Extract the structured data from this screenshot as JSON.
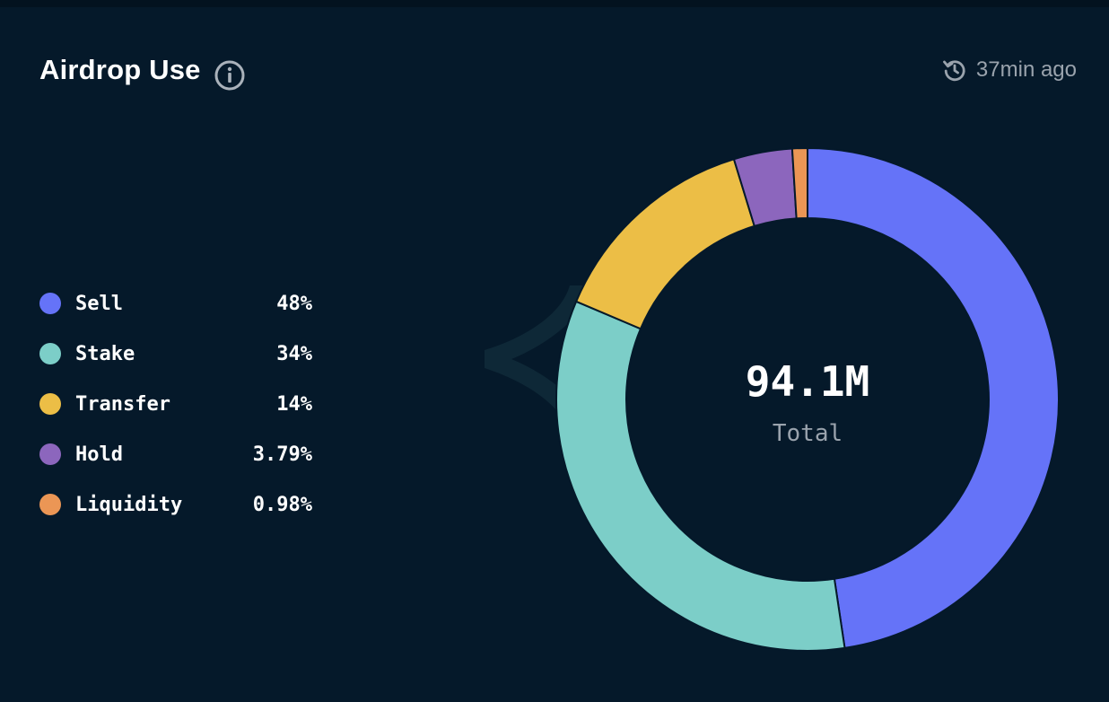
{
  "header": {
    "title": "Airdrop Use",
    "updated": "37min ago"
  },
  "icons": {
    "info": "info-icon",
    "updated": "clock-refresh-icon"
  },
  "center": {
    "value": "94.1M",
    "label": "Total"
  },
  "colors": {
    "background": "#05192a",
    "Sell": "#6573f8",
    "Stake": "#7ccec8",
    "Transfer": "#ecbe46",
    "Hold": "#8c66bd",
    "Liquidity": "#eb9655"
  },
  "chart_data": {
    "type": "pie",
    "donut": true,
    "categories": [
      "Sell",
      "Stake",
      "Transfer",
      "Hold",
      "Liquidity"
    ],
    "values": [
      48,
      34,
      14,
      3.79,
      0.98
    ],
    "value_labels": [
      "48%",
      "34%",
      "14%",
      "3.79%",
      "0.98%"
    ],
    "total": "94.1M",
    "legend_position": "left"
  }
}
